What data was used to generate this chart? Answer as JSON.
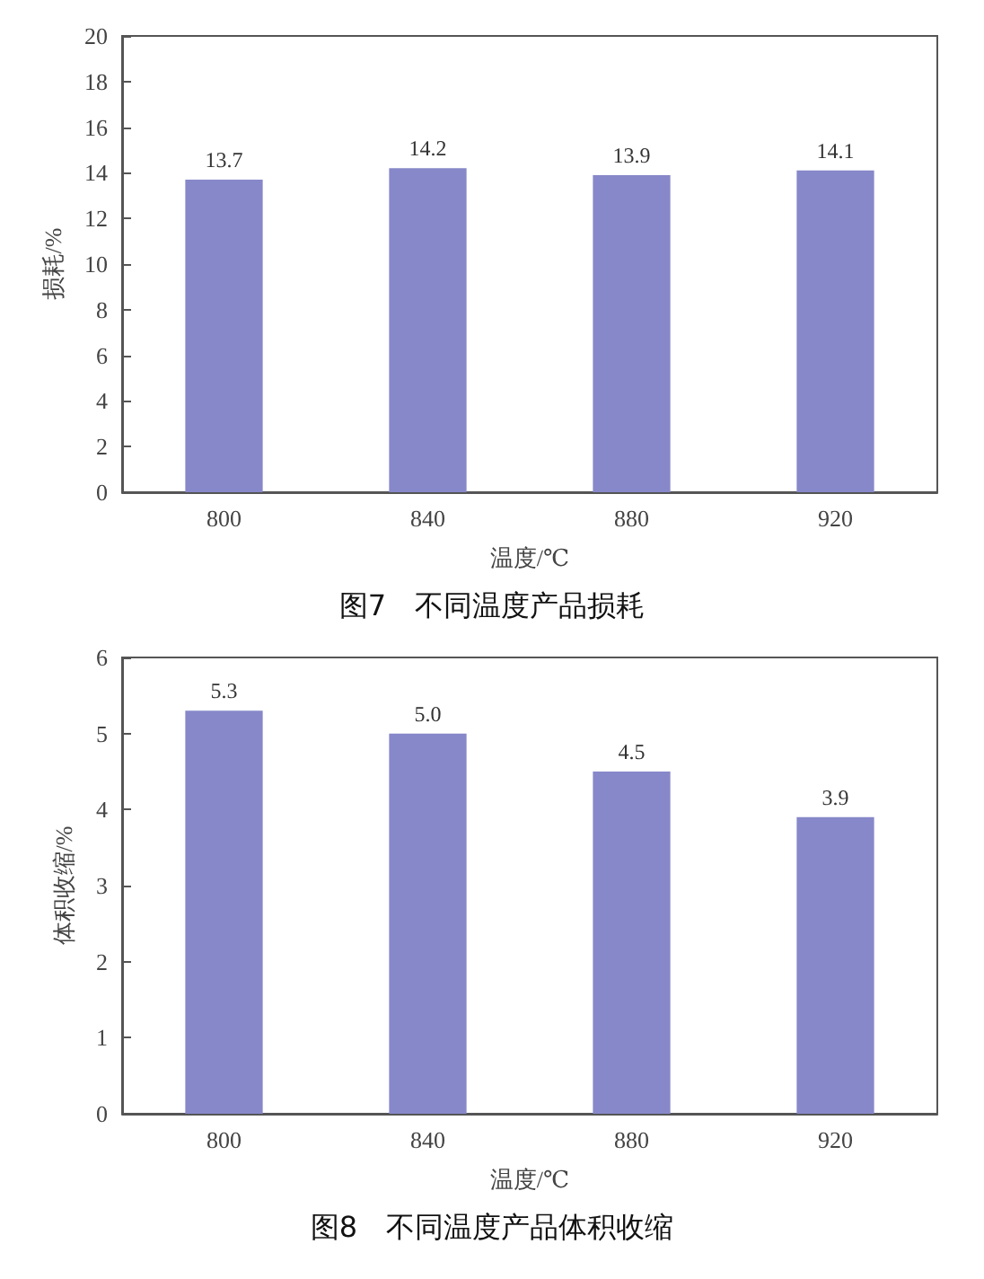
{
  "chart_data": [
    {
      "type": "bar",
      "title": "图7　不同温度产品损耗",
      "xlabel": "温度/℃",
      "ylabel": "损耗/%",
      "categories": [
        "800",
        "840",
        "880",
        "920"
      ],
      "values": [
        13.7,
        14.2,
        13.9,
        14.1
      ],
      "value_labels": [
        "13.7",
        "14.2",
        "13.9",
        "14.1"
      ],
      "color": "#8788c9",
      "ylim": [
        0,
        20
      ],
      "yticks": [
        0,
        2,
        4,
        6,
        8,
        10,
        12,
        14,
        16,
        18,
        20
      ],
      "grid": false
    },
    {
      "type": "bar",
      "title": "图8　不同温度产品体积收缩",
      "xlabel": "温度/℃",
      "ylabel": "体积收缩/%",
      "categories": [
        "800",
        "840",
        "880",
        "920"
      ],
      "values": [
        5.3,
        5.0,
        4.5,
        3.9
      ],
      "value_labels": [
        "5.3",
        "5.0",
        "4.5",
        "3.9"
      ],
      "color": "#8788c9",
      "ylim": [
        0,
        6
      ],
      "yticks": [
        0,
        1,
        2,
        3,
        4,
        5,
        6
      ],
      "grid": false
    }
  ]
}
